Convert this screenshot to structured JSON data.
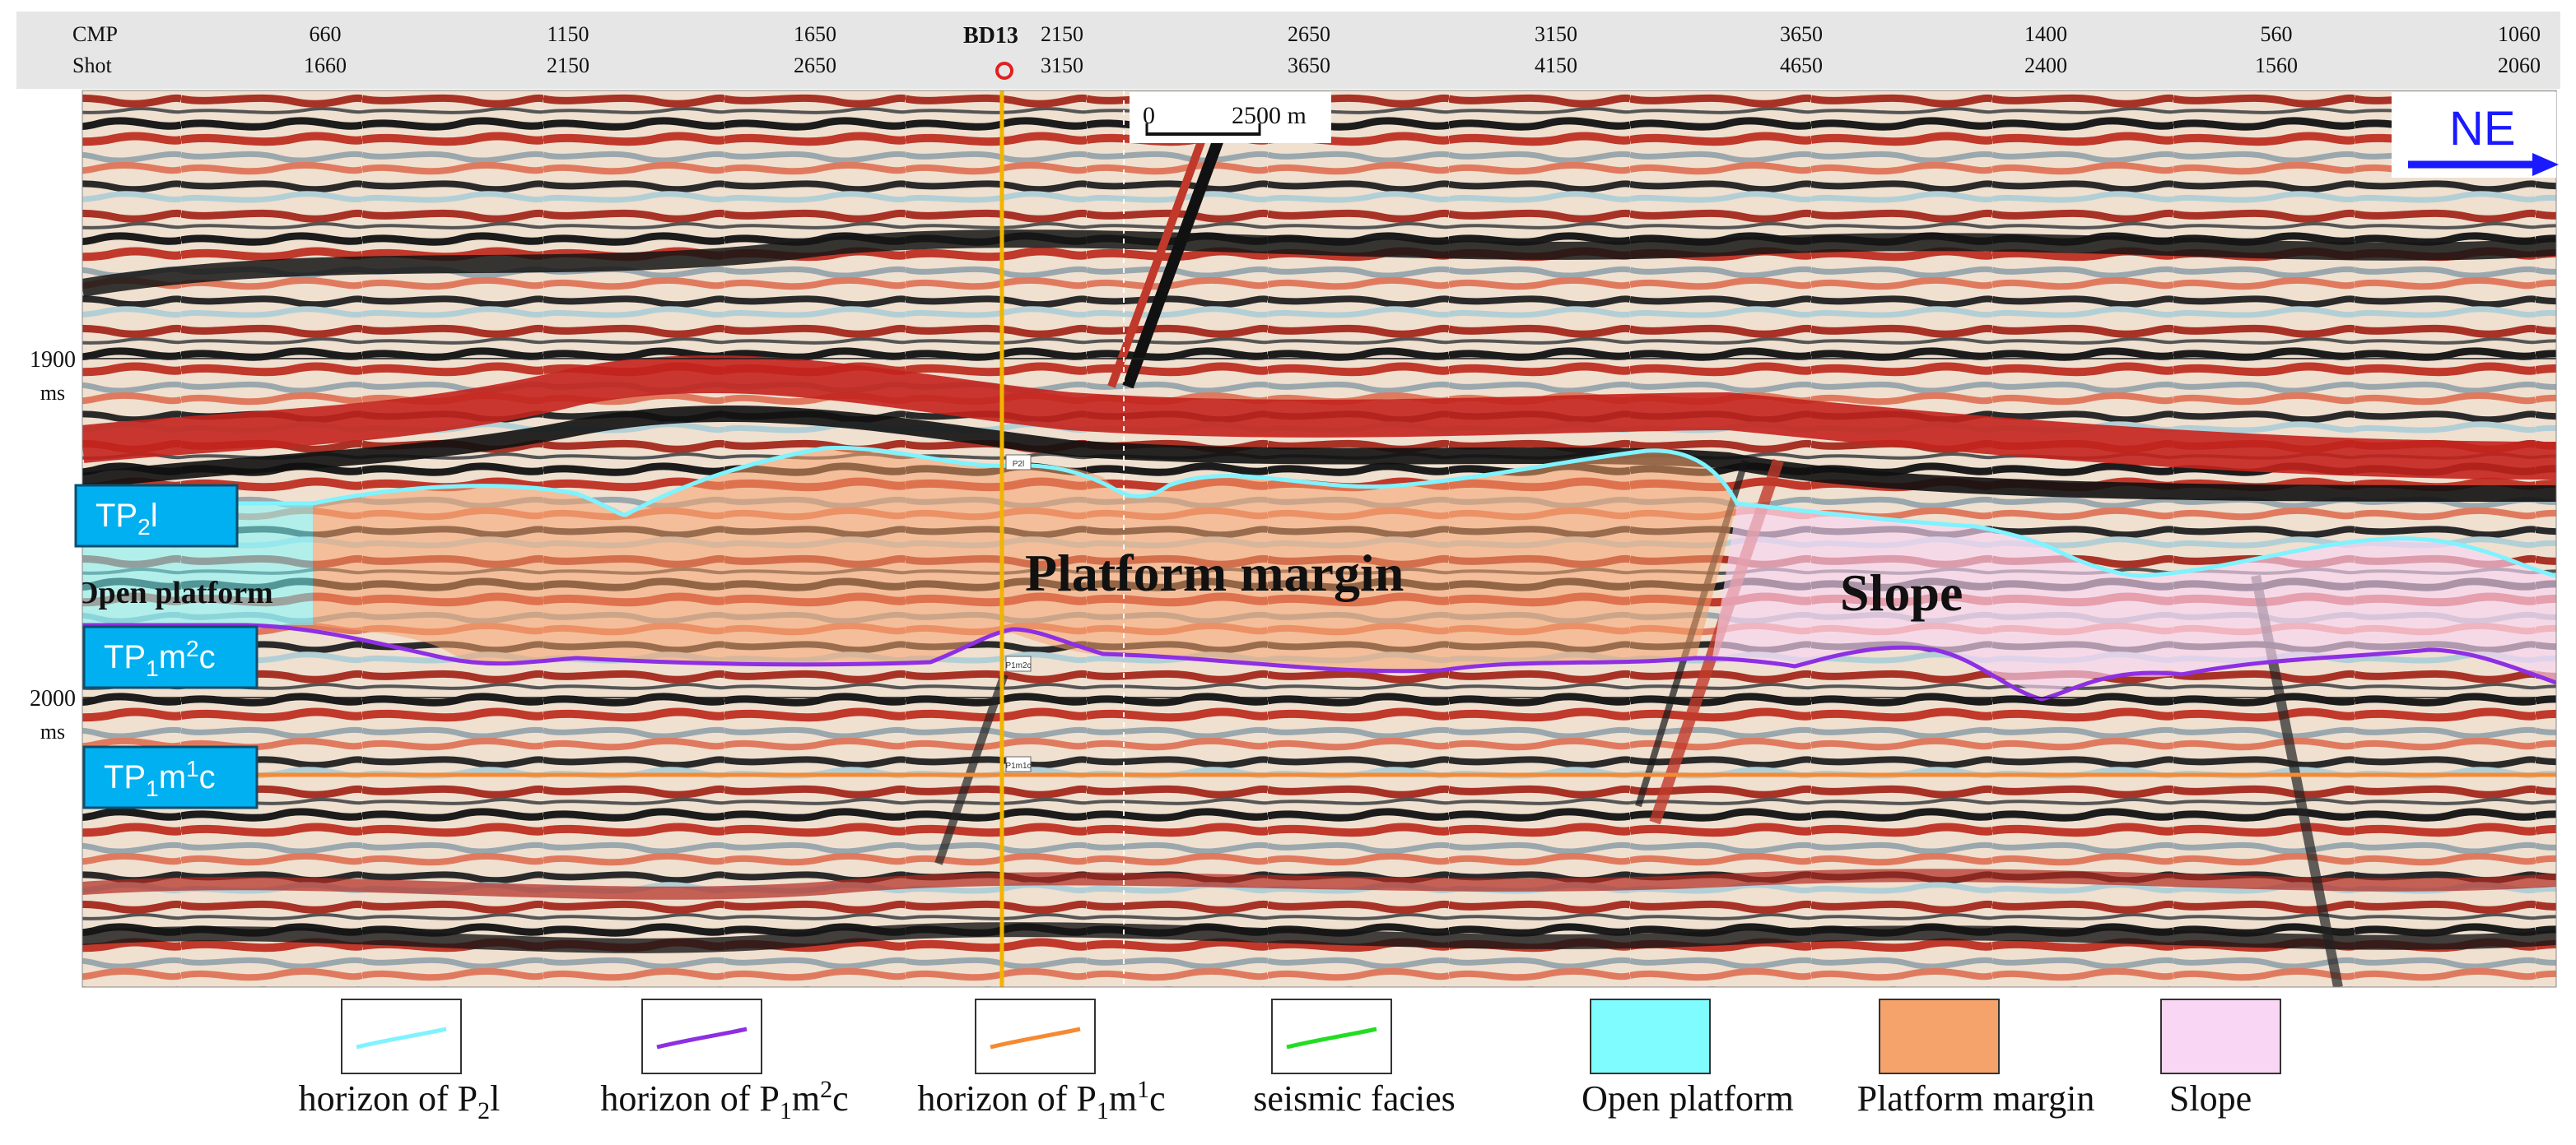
{
  "header": {
    "cmp_label": "CMP",
    "shot_label": "Shot",
    "cmp_ticks": [
      "660",
      "1150",
      "1650",
      "2150",
      "2650",
      "3150",
      "3650",
      "1400",
      "560",
      "1060"
    ],
    "shot_ticks": [
      "1660",
      "2150",
      "2650",
      "3150",
      "3650",
      "4150",
      "4650",
      "2400",
      "1560",
      "2060"
    ]
  },
  "well": {
    "name": "BD13",
    "color": "#f2b400"
  },
  "scale_bar": {
    "start": "0",
    "end": "2500 m"
  },
  "direction": {
    "label": "NE",
    "color": "#1a1aff"
  },
  "time_axis": {
    "unit": "ms",
    "ticks": [
      {
        "value": "1900",
        "unit": "ms"
      },
      {
        "value": "2000",
        "unit": "ms"
      }
    ]
  },
  "horizon_tags": [
    {
      "base": "TP",
      "sub1": "2",
      "mid": "l",
      "sup": "",
      "sub2": "",
      "end": ""
    },
    {
      "base": "TP",
      "sub1": "1",
      "mid": "m",
      "sup": "2",
      "sub2": "",
      "end": "c"
    },
    {
      "base": "TP",
      "sub1": "1",
      "mid": "m",
      "sup": "1",
      "sub2": "",
      "end": "c"
    }
  ],
  "facies_labels": {
    "open_platform": "Open platform",
    "platform_margin": "Platform margin",
    "slope": "Slope"
  },
  "well_tick_labels": [
    "P2l",
    "P1m2c",
    "P1m1c"
  ],
  "colors": {
    "open_platform": "#7ffcff",
    "platform_margin": "#f6a26b",
    "slope": "#f9d6f3",
    "horizon_p2l": "#7ff3ff",
    "horizon_p1m2c": "#8e2fe3",
    "horizon_p1m1c": "#f58a33",
    "seismic_facies": "#22dd22",
    "tag_fill": "#00b0f0"
  },
  "legend": [
    {
      "kind": "line",
      "key": "horizon_p2l",
      "text": "horizon of P",
      "sub": "2",
      "sup": "",
      "tail": "l"
    },
    {
      "kind": "line",
      "key": "horizon_p1m2c",
      "text": "horizon of P",
      "sub": "1",
      "mid": "m",
      "sup": "2",
      "tail": "c"
    },
    {
      "kind": "line",
      "key": "horizon_p1m1c",
      "text": "horizon of P",
      "sub": "1",
      "mid": "m",
      "sup": "1",
      "tail": "c"
    },
    {
      "kind": "line",
      "key": "seismic_facies",
      "text": "seismic facies"
    },
    {
      "kind": "patch",
      "key": "open_platform",
      "text": "Open platform"
    },
    {
      "kind": "patch",
      "key": "platform_margin",
      "text": "Platform margin"
    },
    {
      "kind": "patch",
      "key": "slope",
      "text": "Slope"
    }
  ]
}
